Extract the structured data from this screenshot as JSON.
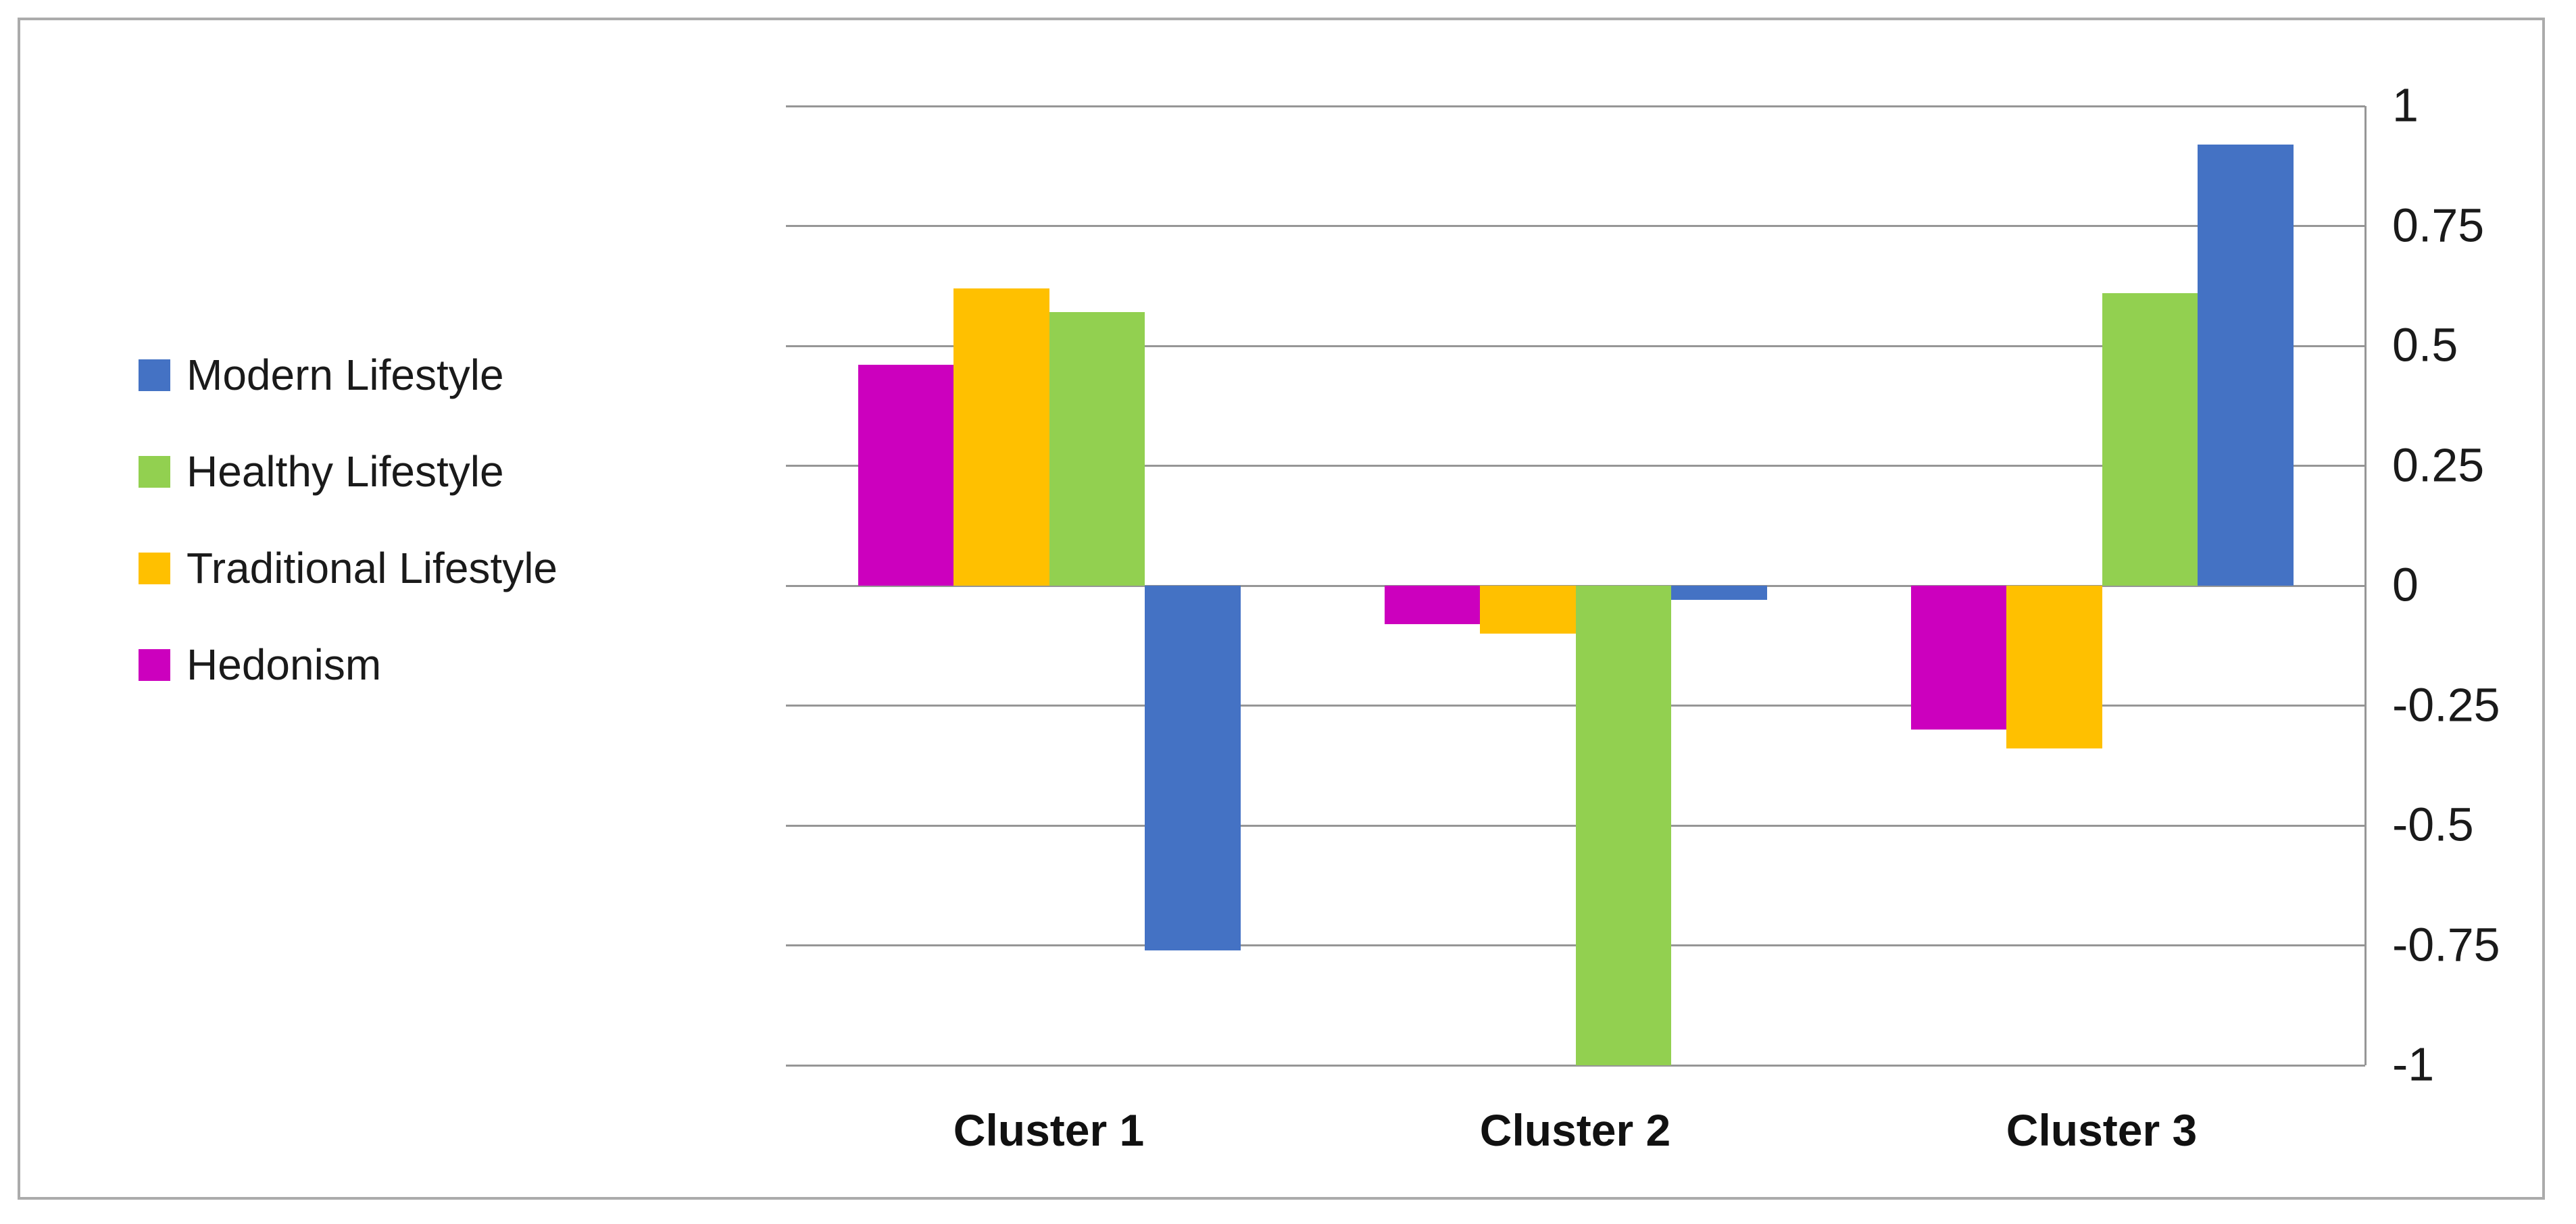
{
  "chart_data": {
    "type": "bar",
    "categories": [
      "Cluster 1",
      "Cluster 2",
      "Cluster 3"
    ],
    "series": [
      {
        "name": "Modern Lifestyle",
        "color": "#4472C4",
        "values": [
          -0.76,
          -0.03,
          0.92
        ]
      },
      {
        "name": "Healthy Lifestyle",
        "color": "#92D050",
        "values": [
          0.57,
          -1.0,
          0.61
        ]
      },
      {
        "name": "Traditional Lifestyle",
        "color": "#FFC000",
        "values": [
          0.62,
          -0.1,
          -0.34
        ]
      },
      {
        "name": "Hedonism",
        "color": "#CC00BE",
        "values": [
          0.46,
          -0.08,
          -0.3
        ]
      }
    ],
    "bar_draw_order": [
      3,
      2,
      1,
      0
    ],
    "title": "",
    "xlabel": "",
    "ylabel": "",
    "y_axis": {
      "min": -1,
      "max": 1,
      "step": 0.25,
      "side": "right",
      "ticks": [
        "1",
        "0.75",
        "0.5",
        "0.25",
        "0",
        "-0.25",
        "-0.5",
        "-0.75",
        "-1"
      ]
    },
    "grid": true,
    "legend_position": "left"
  },
  "colors": {
    "gridline": "#969696",
    "frame_border": "#ABABAB",
    "text": "#1A1A1A",
    "background": "#FFFFFF"
  }
}
